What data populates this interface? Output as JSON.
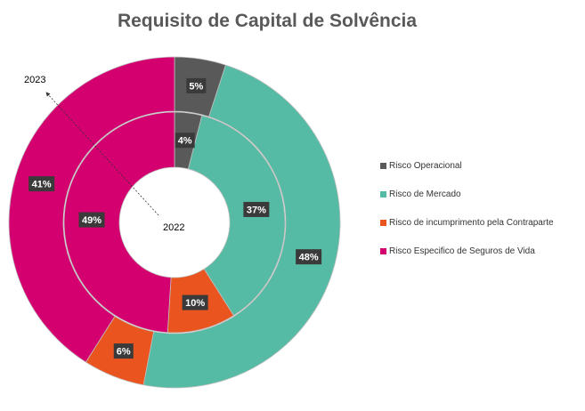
{
  "chart_data": {
    "type": "donut",
    "title": "Requisito de Capital de Solvência",
    "categories": [
      "Risco Operacional",
      "Risco de Mercado",
      "Risco de incumprimento pela Contraparte",
      "Risco Especifico de Seguros de Vida"
    ],
    "colors": [
      "#595959",
      "#56bba4",
      "#e9541f",
      "#d4006f"
    ],
    "series": [
      {
        "name": "2023",
        "ring": "outer",
        "values": [
          5,
          48,
          6,
          41
        ],
        "labels": [
          "5%",
          "48%",
          "6%",
          "41%"
        ]
      },
      {
        "name": "2022",
        "ring": "inner",
        "values": [
          4,
          37,
          10,
          49
        ],
        "labels": [
          "4%",
          "37%",
          "10%",
          "49%"
        ]
      }
    ],
    "legend_position": "right"
  }
}
